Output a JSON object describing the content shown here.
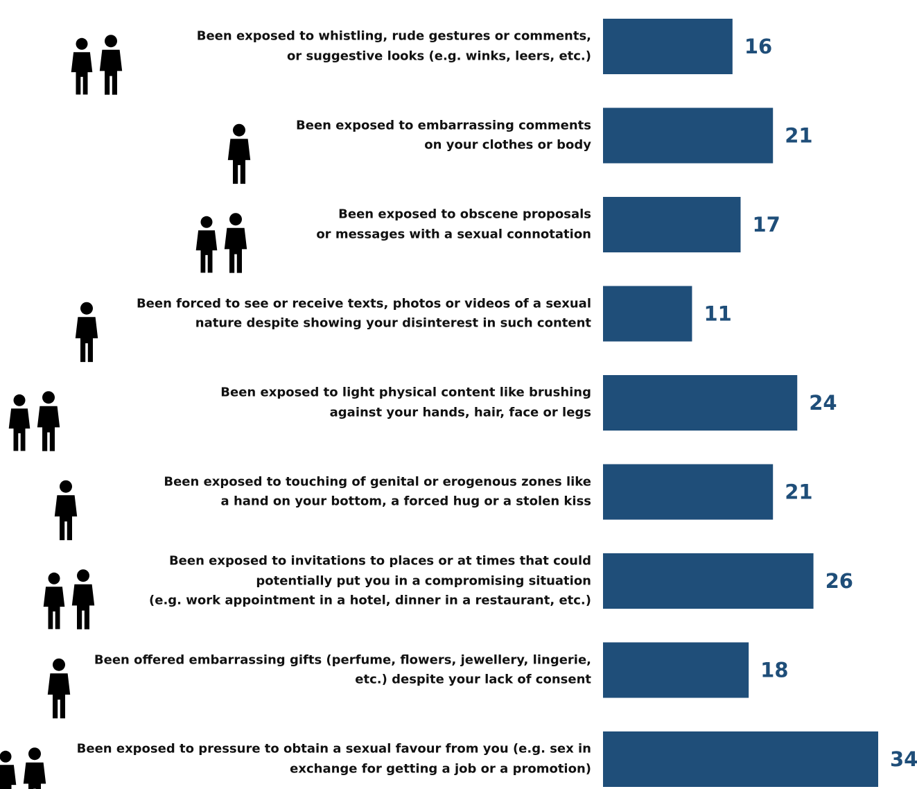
{
  "chart_data": {
    "type": "bar",
    "orientation": "horizontal",
    "color": "#1f4e79",
    "categories": [
      "Been exposed to whistling, rude gestures or comments,\nor suggestive looks (e.g. winks, leers, etc.)",
      "Been exposed to embarrassing comments\non your clothes or body",
      "Been exposed to obscene proposals\nor messages with a sexual connotation",
      "Been forced to see or receive texts, photos or videos of a sexual\nnature despite showing your disinterest in such content",
      "Been exposed to light physical content like brushing\nagainst your hands, hair, face or legs",
      "Been exposed to touching of genital or erogenous zones like\na hand on your bottom, a forced hug or a stolen kiss",
      "Been exposed to invitations to places or at times that could\npotentially put you in a compromising situation\n(e.g. work appointment in a hotel, dinner in a restaurant, etc.)",
      "Been offered embarrassing gifts (perfume, flowers, jewellery, lingerie,\netc.) despite your lack of consent",
      "Been exposed to pressure to obtain a sexual favour from you (e.g. sex in\nexchange for getting a job or a promotion)"
    ],
    "values": [
      16,
      21,
      17,
      11,
      24,
      21,
      26,
      18,
      34
    ]
  }
}
